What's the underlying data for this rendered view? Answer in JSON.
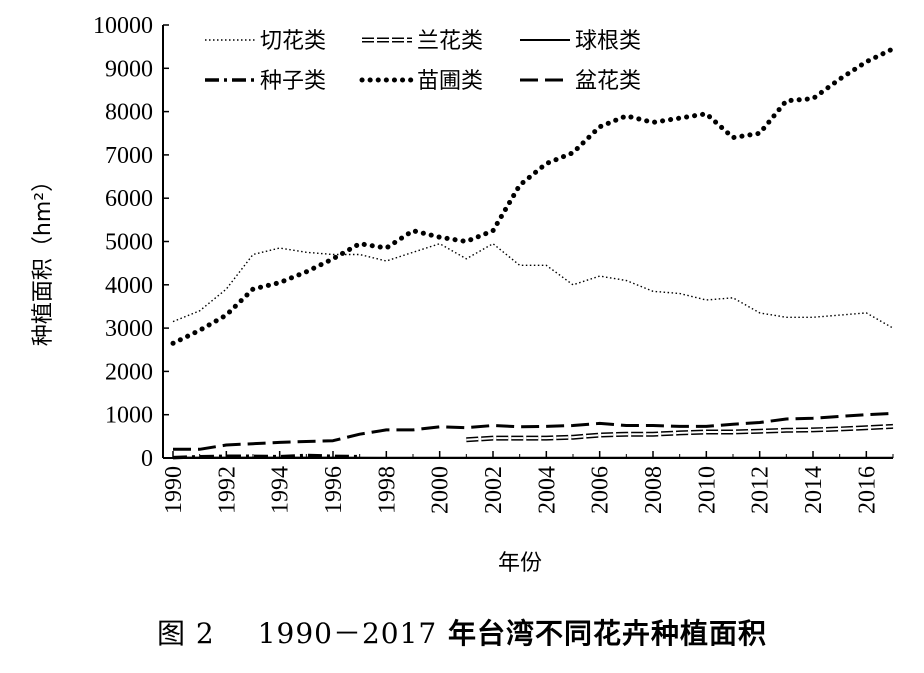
{
  "caption": {
    "figure_no": "图 2",
    "range": "1990－2017",
    "title": "年台湾不同花卉种植面积"
  },
  "chart_data": {
    "type": "line",
    "title": "",
    "xlabel": "年份",
    "ylabel": "种植面积（hm²）",
    "xlim": [
      1990,
      2017
    ],
    "ylim": [
      0,
      10000
    ],
    "xticks": [
      1990,
      1992,
      1994,
      1996,
      1998,
      2000,
      2002,
      2004,
      2006,
      2008,
      2010,
      2012,
      2014,
      2016
    ],
    "yticks": [
      0,
      1000,
      2000,
      3000,
      4000,
      5000,
      6000,
      7000,
      8000,
      9000,
      10000
    ],
    "grid": false,
    "legend_position": "top-center",
    "series": [
      {
        "name": "切花类",
        "style": "thin-dotted",
        "x": [
          1990,
          1991,
          1992,
          1993,
          1994,
          1995,
          1996,
          1997,
          1998,
          1999,
          2000,
          2001,
          2002,
          2003,
          2004,
          2005,
          2006,
          2007,
          2008,
          2009,
          2010,
          2011,
          2012,
          2013,
          2014,
          2015,
          2016,
          2017
        ],
        "values": [
          3150,
          3400,
          3900,
          4700,
          4850,
          4750,
          4700,
          4700,
          4550,
          4750,
          4950,
          4600,
          4950,
          4450,
          4450,
          4000,
          4200,
          4100,
          3850,
          3800,
          3650,
          3700,
          3350,
          3250,
          3250,
          3300,
          3350,
          3000
        ]
      },
      {
        "name": "兰花类",
        "style": "double-dash",
        "x": [
          2001,
          2002,
          2003,
          2004,
          2005,
          2006,
          2007,
          2008,
          2009,
          2010,
          2011,
          2012,
          2013,
          2014,
          2015,
          2016,
          2017
        ],
        "values": [
          420,
          460,
          460,
          460,
          480,
          530,
          550,
          550,
          580,
          600,
          600,
          620,
          640,
          650,
          670,
          700,
          730
        ]
      },
      {
        "name": "球根类",
        "style": "solid",
        "x": [
          1990,
          1992,
          1994,
          1996,
          1998,
          2000,
          2002,
          2004,
          2006,
          2008,
          2010,
          2012,
          2014,
          2016,
          2017
        ],
        "values": [
          10,
          10,
          10,
          10,
          5,
          5,
          5,
          5,
          5,
          5,
          5,
          5,
          5,
          5,
          5
        ]
      },
      {
        "name": "种子类",
        "style": "dash-dot",
        "x": [
          1990,
          1991,
          1992,
          1993,
          1994,
          1995,
          1996,
          1997
        ],
        "values": [
          10,
          30,
          40,
          40,
          30,
          60,
          40,
          30
        ]
      },
      {
        "name": "苗圃类",
        "style": "thick-dotted",
        "x": [
          1990,
          1991,
          1992,
          1993,
          1994,
          1995,
          1996,
          1997,
          1998,
          1999,
          2000,
          2001,
          2002,
          2003,
          2004,
          2005,
          2006,
          2007,
          2008,
          2009,
          2010,
          2011,
          2012,
          2013,
          2014,
          2015,
          2016,
          2017
        ],
        "values": [
          2650,
          2950,
          3300,
          3900,
          4050,
          4300,
          4600,
          4950,
          4850,
          5250,
          5100,
          5000,
          5250,
          6300,
          6800,
          7050,
          7650,
          7900,
          7750,
          7850,
          7950,
          7400,
          7500,
          8250,
          8300,
          8750,
          9150,
          9450
        ]
      },
      {
        "name": "盆花类",
        "style": "dashed",
        "x": [
          1990,
          1991,
          1992,
          1993,
          1994,
          1995,
          1996,
          1997,
          1998,
          1999,
          2000,
          2001,
          2002,
          2003,
          2004,
          2005,
          2006,
          2007,
          2008,
          2009,
          2010,
          2011,
          2012,
          2013,
          2014,
          2015,
          2016,
          2017
        ],
        "values": [
          200,
          200,
          300,
          330,
          360,
          380,
          400,
          550,
          650,
          650,
          720,
          700,
          750,
          720,
          730,
          750,
          800,
          750,
          750,
          730,
          730,
          780,
          820,
          900,
          920,
          960,
          1000,
          1030
        ]
      }
    ]
  }
}
